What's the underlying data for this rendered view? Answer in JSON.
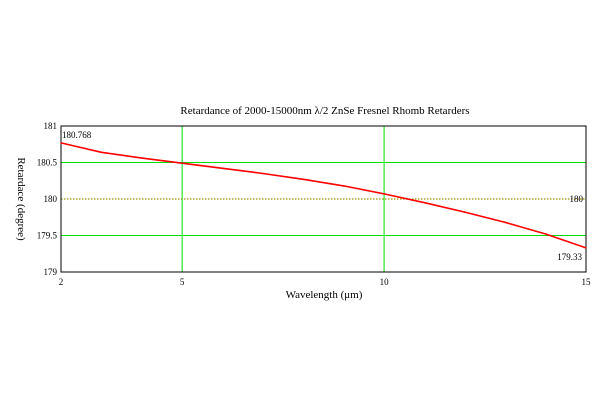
{
  "chart_data": {
    "type": "line",
    "title": "Retardance of 2000-15000nm λ/2 ZnSe Fresnel Rhomb Retarders",
    "xlabel": "Wavelength (μm)",
    "ylabel": "Retardace (degree)",
    "xlim": [
      2,
      15
    ],
    "ylim": [
      179,
      181
    ],
    "x_ticks": [
      2,
      5,
      10,
      15
    ],
    "x_tick_labels": [
      "2",
      "5",
      "10",
      "15"
    ],
    "y_ticks": [
      181,
      180.5,
      180,
      179.5,
      179
    ],
    "y_tick_labels": [
      "181",
      "180.5",
      "180",
      "179.5",
      "179"
    ],
    "grid": true,
    "series": [
      {
        "color": "#ff0000",
        "x": [
          2,
          3,
          4,
          5,
          6,
          7,
          8,
          9,
          10,
          11,
          12,
          13,
          14,
          15
        ],
        "y": [
          180.768,
          180.64,
          180.56,
          180.49,
          180.42,
          180.35,
          180.27,
          180.18,
          180.07,
          179.95,
          179.82,
          179.68,
          179.52,
          179.33
        ]
      }
    ],
    "reference_line": {
      "y": 180,
      "color": "#a09000",
      "label": "180"
    },
    "annotations": [
      {
        "text": "180.768",
        "x": 2,
        "y": 180.768
      },
      {
        "text": "179.33",
        "x": 15,
        "y": 179.33
      }
    ],
    "colors": {
      "grid": "#00dd00",
      "axes": "#000000",
      "line": "#ff0000"
    }
  }
}
